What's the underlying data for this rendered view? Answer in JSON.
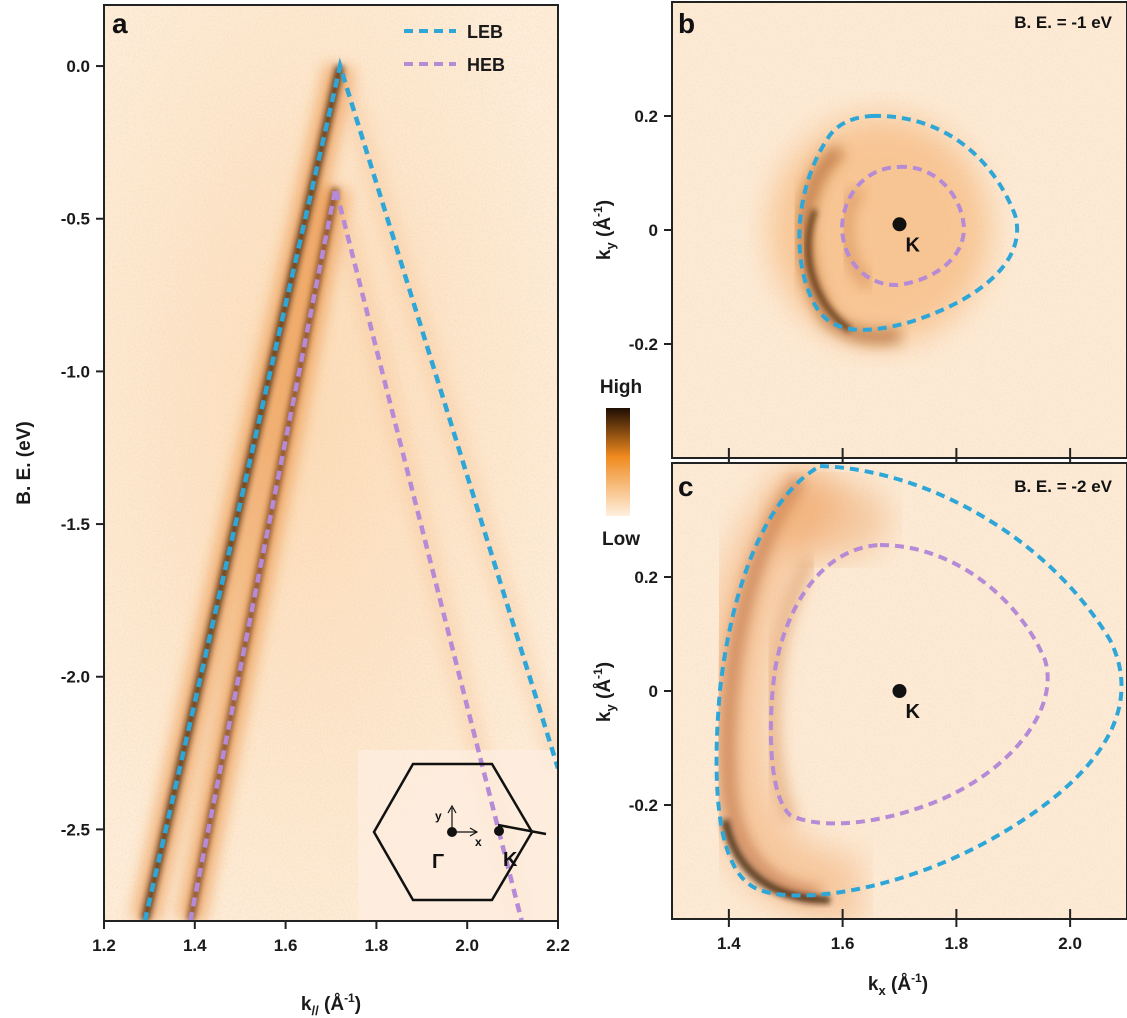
{
  "chart_data": [
    {
      "panel": "a",
      "type": "heatmap",
      "xlabel_main": "k",
      "xlabel_sub": "//",
      "xlabel_unit_open": " (Å",
      "xlabel_unit_sup": "-1",
      "xlabel_unit_close": ")",
      "ylabel": "B. E. (eV)",
      "xlim": [
        1.2,
        2.2
      ],
      "ylim": [
        -2.8,
        0.2
      ],
      "xticks": [
        1.2,
        1.4,
        1.6,
        1.8,
        2.0,
        2.2
      ],
      "xtick_labels": [
        "1.2",
        "1.4",
        "1.6",
        "1.8",
        "2.0",
        "2.2"
      ],
      "yticks": [
        0,
        -0.5,
        -1.0,
        -1.5,
        -2.0,
        -2.5
      ],
      "ytick_labels": [
        "0.0",
        "-0.5",
        "-1.0",
        "-1.5",
        "-2.0",
        "-2.5"
      ],
      "series": [
        {
          "name": "LEB",
          "color": "#2ea7d8",
          "x": [
            1.29,
            1.72,
            2.2
          ],
          "y": [
            -2.8,
            0.0,
            -2.3
          ]
        },
        {
          "name": "HEB",
          "color": "#b58ad6",
          "x": [
            1.39,
            1.71,
            2.12
          ],
          "y": [
            -2.8,
            -0.4,
            -2.8
          ]
        }
      ],
      "legend": {
        "position": "top-right",
        "entries": [
          "LEB",
          "HEB"
        ]
      },
      "inset": {
        "gamma_label": "Γ",
        "k_label": "K",
        "x_axis_label": "x",
        "y_axis_label": "y"
      }
    },
    {
      "panel": "b",
      "type": "heatmap",
      "annotation": "B. E. = -1 eV",
      "ylabel_main": "k",
      "ylabel_sub": "y",
      "ylabel_unit_open": " (Å",
      "ylabel_unit_sup": "-1",
      "ylabel_unit_close": ")",
      "xlim": [
        1.3,
        2.1
      ],
      "ylim": [
        -0.4,
        0.4
      ],
      "yticks": [
        0.2,
        0,
        -0.2
      ],
      "ytick_labels": [
        "0.2",
        "0",
        "-0.2"
      ],
      "xticks": [
        1.4,
        1.6,
        1.8,
        2.0
      ],
      "k_point": {
        "label": "K",
        "x": 1.7,
        "y": 0.01
      },
      "contours": [
        {
          "name": "LEB",
          "color": "#2ea7d8"
        },
        {
          "name": "HEB",
          "color": "#b58ad6"
        }
      ]
    },
    {
      "panel": "c",
      "type": "heatmap",
      "annotation": "B. E. = -2 eV",
      "xlabel_main": "k",
      "xlabel_sub": "x",
      "xlabel_unit_open": " (Å",
      "xlabel_unit_sup": "-1",
      "xlabel_unit_close": ")",
      "ylabel_main": "k",
      "ylabel_sub": "y",
      "ylabel_unit_open": " (Å",
      "ylabel_unit_sup": "-1",
      "ylabel_unit_close": ")",
      "xlim": [
        1.3,
        2.1
      ],
      "ylim": [
        -0.4,
        0.4
      ],
      "xticks": [
        1.4,
        1.6,
        1.8,
        2.0
      ],
      "xtick_labels": [
        "1.4",
        "1.6",
        "1.8",
        "2.0"
      ],
      "yticks": [
        0.2,
        0,
        -0.2
      ],
      "ytick_labels": [
        "0.2",
        "0",
        "-0.2"
      ],
      "k_point": {
        "label": "K",
        "x": 1.7,
        "y": 0.0
      },
      "contours": [
        {
          "name": "LEB",
          "color": "#2ea7d8"
        },
        {
          "name": "HEB",
          "color": "#b58ad6"
        }
      ]
    }
  ],
  "colorbar": {
    "high_label": "High",
    "low_label": "Low",
    "high_color": "#1e0e04",
    "mid_color": "#f08a1e",
    "low_color": "#fff0de"
  }
}
